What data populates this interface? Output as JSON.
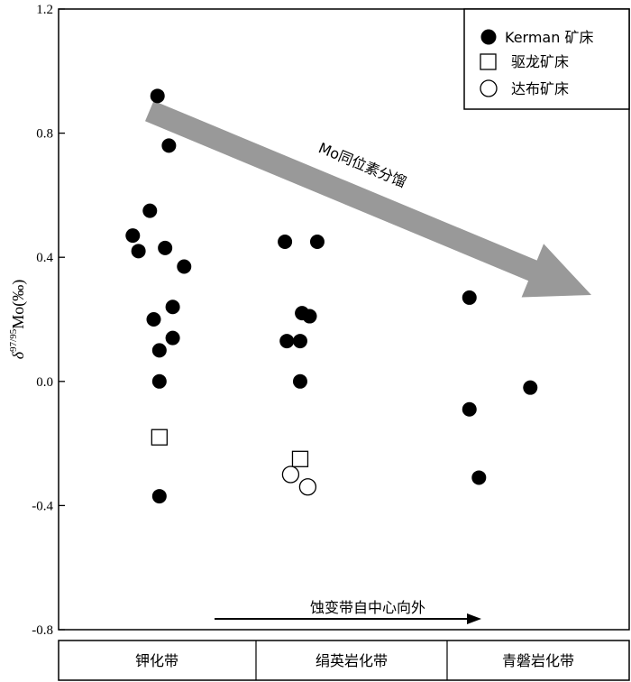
{
  "chart_data": {
    "type": "scatter",
    "ylabel": {
      "delta": "δ",
      "sup": "97/95",
      "rest": "Mo(‰)"
    },
    "ylim": [
      -0.8,
      1.2
    ],
    "yticks": [
      "1.2",
      "0.8",
      "0.4",
      "0.0",
      "-0.4",
      "-0.8"
    ],
    "ytick_values": [
      1.2,
      0.8,
      0.4,
      0.0,
      -0.4,
      -0.8
    ],
    "xlim": [
      0,
      3
    ],
    "grid": false,
    "legend_position": "top-right",
    "x_categories": [
      "钾化带",
      "绢英岩化带",
      "青磐岩化带"
    ],
    "series": [
      {
        "name": "Kerman 矿床",
        "marker": "filled-circle",
        "points": [
          {
            "x": 0.52,
            "y": 0.92
          },
          {
            "x": 0.58,
            "y": 0.76
          },
          {
            "x": 0.48,
            "y": 0.55
          },
          {
            "x": 0.39,
            "y": 0.47
          },
          {
            "x": 0.42,
            "y": 0.42
          },
          {
            "x": 0.56,
            "y": 0.43
          },
          {
            "x": 0.66,
            "y": 0.37
          },
          {
            "x": 0.6,
            "y": 0.24
          },
          {
            "x": 0.5,
            "y": 0.2
          },
          {
            "x": 0.6,
            "y": 0.14
          },
          {
            "x": 0.53,
            "y": 0.1
          },
          {
            "x": 0.53,
            "y": 0.0
          },
          {
            "x": 0.53,
            "y": -0.37
          },
          {
            "x": 1.19,
            "y": 0.45
          },
          {
            "x": 1.36,
            "y": 0.45
          },
          {
            "x": 1.28,
            "y": 0.22
          },
          {
            "x": 1.32,
            "y": 0.21
          },
          {
            "x": 1.2,
            "y": 0.13
          },
          {
            "x": 1.27,
            "y": 0.13
          },
          {
            "x": 1.27,
            "y": 0.0
          },
          {
            "x": 2.16,
            "y": 0.27
          },
          {
            "x": 2.16,
            "y": -0.09
          },
          {
            "x": 2.21,
            "y": -0.31
          },
          {
            "x": 2.48,
            "y": -0.02
          }
        ]
      },
      {
        "name": "驱龙矿床",
        "marker": "open-square",
        "points": [
          {
            "x": 0.53,
            "y": -0.18
          },
          {
            "x": 1.27,
            "y": -0.25
          }
        ]
      },
      {
        "name": "达布矿床",
        "marker": "open-circle",
        "points": [
          {
            "x": 1.22,
            "y": -0.3
          },
          {
            "x": 1.31,
            "y": -0.34
          }
        ]
      }
    ],
    "annotations": {
      "arrow_label": "Mo同位素分馏",
      "bottom_arrow_label": "蚀变带自中心向外"
    }
  }
}
